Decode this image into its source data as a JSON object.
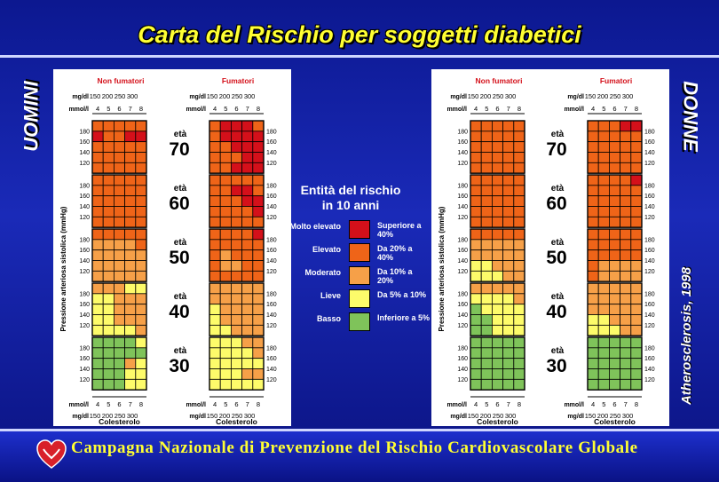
{
  "title": "Carta del Rischio per soggetti diabetici",
  "side_left": "UOMINI",
  "side_right": "DONNE",
  "reference": "Atherosclerosis, 1998",
  "footer": "Campagna Nazionale di Prevenzione del Rischio Cardiovascolare Globale",
  "headers": {
    "non_smokers": "Non fumatori",
    "smokers": "Fumatori"
  },
  "units": {
    "mgdl": "mg/dl",
    "mmol": "mmol/l"
  },
  "chol_mgdl": [
    "150",
    "200",
    "250",
    "300"
  ],
  "chol_mmol": [
    "4",
    "5",
    "6",
    "7",
    "8"
  ],
  "sbp": [
    "180",
    "160",
    "140",
    "120"
  ],
  "age_label": "età",
  "ages": [
    "70",
    "60",
    "50",
    "40",
    "30"
  ],
  "ylabel": "Pressione arteriosa sistolica (mmHg)",
  "xlabel": "Colesterolo",
  "legend": {
    "title_line1": "Entità del rischio",
    "title_line2": "in 10 anni",
    "items": [
      {
        "label": "Molto elevato",
        "desc": "Superiore a 40%",
        "color": "#d4101a"
      },
      {
        "label": "Elevato",
        "desc": "Da 20% a 40%",
        "color": "#ef6418"
      },
      {
        "label": "Moderato",
        "desc": "Da 10% a 20%",
        "color": "#f6a048"
      },
      {
        "label": "Lieve",
        "desc": "Da 5% a 10%",
        "color": "#fdfb6a"
      },
      {
        "label": "Basso",
        "desc": "Inferiore a 5%",
        "color": "#7fc35a"
      }
    ]
  },
  "colors": {
    "0": "#7fc35a",
    "1": "#fdfb6a",
    "2": "#f6a048",
    "3": "#ef6418",
    "4": "#d4101a"
  },
  "grids": {
    "men_non": [
      [
        "3333343344333333333333333",
        "3333333333333333333333333",
        "3333322223222222222222222",
        "2221111222112221122211112",
        "0000100000000210001100011"
      ],
      [],
      [],
      [],
      []
    ],
    "men_smk": [
      [
        "3444334444334443334433444",
        "3333333443333443333433333",
        "3333433333323333223333333",
        "2222222222122221222211222",
        "1112211112111111112211111"
      ],
      [],
      [],
      [],
      []
    ],
    "women_non": [
      [
        "3333333333333333333333333",
        "3333333333333333333333333",
        "3333322222222221122211122",
        "2222211112011110011100111",
        "0000000000000000000000000"
      ],
      [],
      [],
      [],
      []
    ],
    "women_smk": [
      [
        "3334433333333333333333333",
        "3333433333333333333333333",
        "3333333333333333222232222",
        "2222222222222221122211122",
        "0000000000000000000000000"
      ],
      [],
      [],
      [],
      []
    ]
  }
}
